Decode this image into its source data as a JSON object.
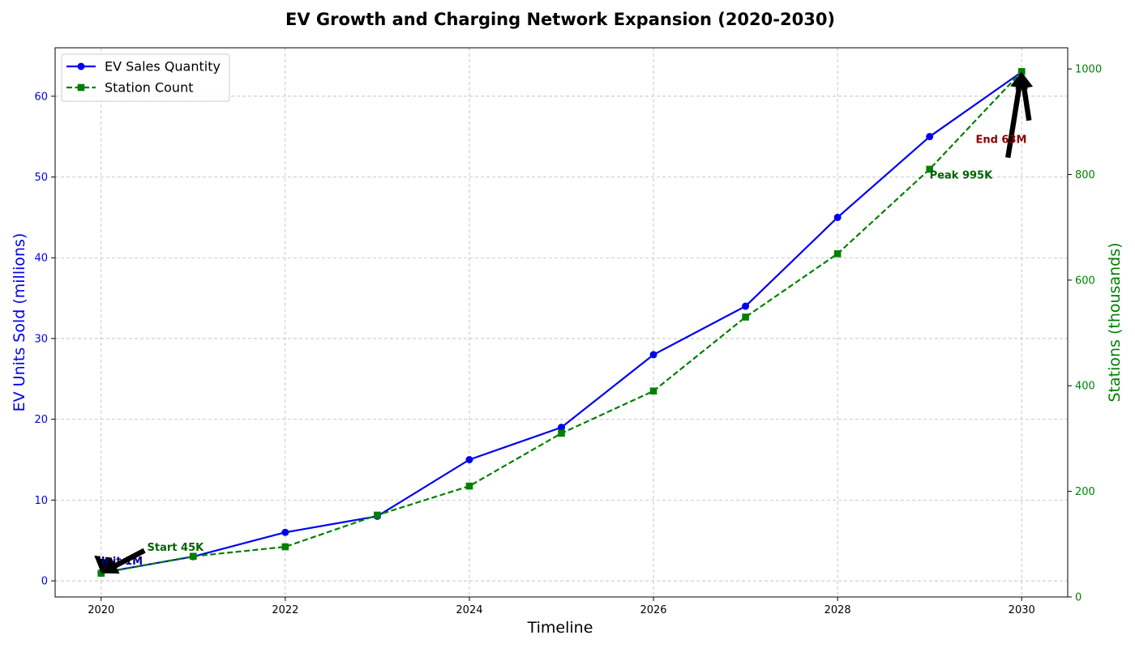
{
  "chart_data": {
    "type": "line",
    "title": "EV Growth and Charging Network Expansion (2020-2030)",
    "xlabel": "Timeline",
    "ylabel_left": "EV Units Sold (millions)",
    "ylabel_right": "Stations (thousands)",
    "x": [
      2020,
      2021,
      2022,
      2023,
      2024,
      2025,
      2026,
      2027,
      2028,
      2029,
      2030
    ],
    "x_ticks": [
      2020,
      2022,
      2024,
      2026,
      2028,
      2030
    ],
    "xlim": [
      2019.5,
      2030.5
    ],
    "ylim_left": [
      -2,
      66
    ],
    "y_ticks_left": [
      0,
      10,
      20,
      30,
      40,
      50,
      60
    ],
    "ylim_right": [
      0,
      1040
    ],
    "y_ticks_right": [
      0,
      200,
      400,
      600,
      800,
      1000
    ],
    "grid": true,
    "legend_position": "top-left",
    "series": [
      {
        "name": "EV Sales Quantity",
        "axis": "left",
        "color": "#0000ee",
        "style": "solid",
        "marker": "circle",
        "values": [
          1,
          3,
          6,
          8,
          15,
          19,
          28,
          34,
          45,
          55,
          63
        ]
      },
      {
        "name": "Station Count",
        "axis": "right",
        "color": "#008000",
        "style": "dashed",
        "marker": "square",
        "values": [
          45,
          77,
          95,
          155,
          210,
          310,
          390,
          530,
          650,
          810,
          995
        ]
      }
    ],
    "annotations": [
      {
        "text": "Init 1M",
        "color": "#00008b",
        "target_axis": "left",
        "target": [
          2020,
          1
        ],
        "text_pos": [
          2020,
          2.5
        ]
      },
      {
        "text": "Start 45K",
        "color": "#006400",
        "target_axis": "right",
        "target": [
          2020,
          45
        ],
        "text_pos": [
          2020.5,
          95
        ]
      },
      {
        "text": "Peak 995K",
        "color": "#006400",
        "target_axis": "right",
        "target": [
          2030,
          995
        ],
        "text_pos": [
          2029.0,
          800
        ]
      },
      {
        "text": "End 63M",
        "color": "#8b0000",
        "target_axis": "left",
        "target": [
          2030,
          63
        ],
        "text_pos": [
          2029.5,
          54.7
        ]
      }
    ]
  }
}
